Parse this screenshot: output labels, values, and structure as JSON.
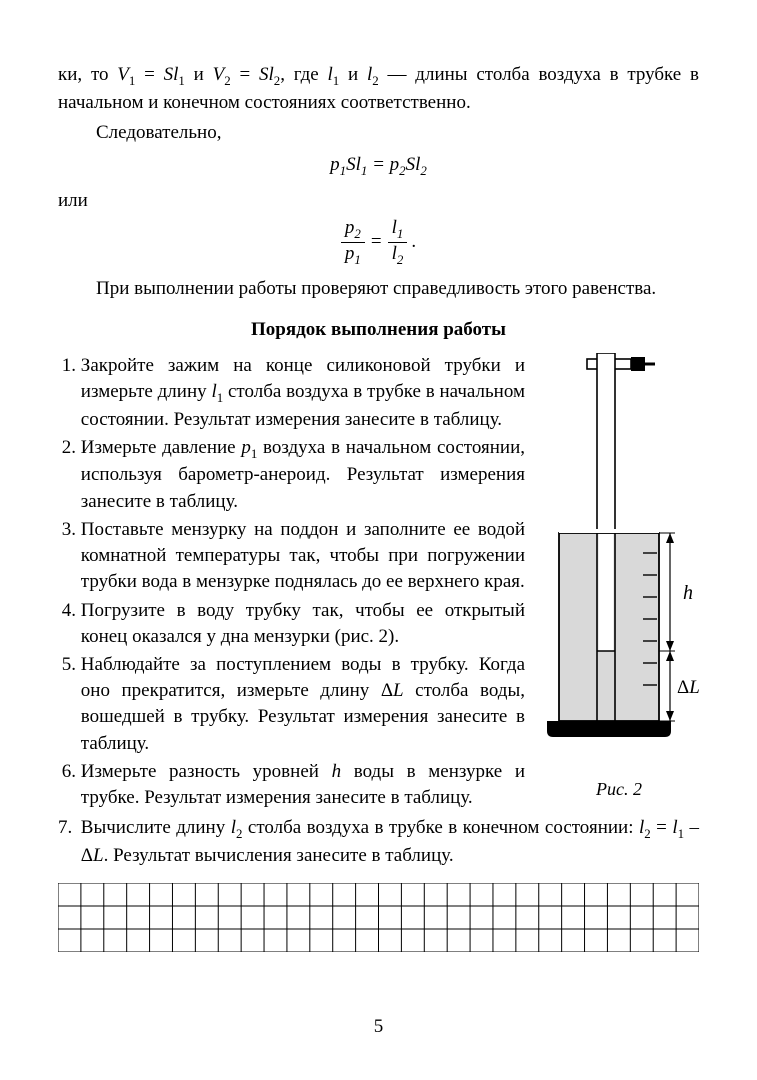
{
  "intro": {
    "line1_a": "ки, то ",
    "line1_b": " и ",
    "line1_c": ", где ",
    "line1_d": " и ",
    "line1_e": " — длины столба воздуха в трубке в начальном и конечном состояниях соответственно.",
    "v1": "V",
    "v1sub": "1",
    "eqs": " = ",
    "s": "S",
    "l": "l",
    "l1sub": "1",
    "v2": "V",
    "v2sub": "2",
    "l2sub": "2",
    "consequently": "Следовательно,",
    "or": "или",
    "eq1_p": "p",
    "eq1": "p₁Sl₁ = p₂Sl₂",
    "frac_p2": "p",
    "frac_p2s": "2",
    "frac_p1": "p",
    "frac_p1s": "1",
    "frac_l1": "l",
    "frac_l1s": "1",
    "frac_l2": "l",
    "frac_l2s": "2",
    "period": " .",
    "check": "При выполнении работы проверяют справедливость этого равенства."
  },
  "section_title": "Порядок выполнения работы",
  "steps": [
    "Закройте зажим на конце силиконовой трубки и измерьте длину l₁ столба воздуха в трубке в начальном состоянии. Результат измерения занесите в таблицу.",
    "Измерьте давление p₁ воздуха в начальном состоянии, используя барометр-анероид. Результат измерения занесите в таблицу.",
    "Поставьте мензурку на поддон и заполните ее водой комнатной температуры так, чтобы при погружении трубки вода в мензурке поднялась до ее верхнего края.",
    "Погрузите в воду трубку так, чтобы ее открытый конец оказался у дна мензурки (рис. 2).",
    "Наблюдайте за поступлением воды в трубку. Когда оно прекратится, измерьте длину ΔL столба воды, вошедшей в трубку. Результат измерения занесите в таблицу.",
    "Измерьте разность уровней h воды в мензурке и трубке. Результат измерения занесите в таблицу."
  ],
  "step7": {
    "marker": "7.",
    "text_a": "Вычислите длину ",
    "text_b": " столба воздуха в трубке в конечном состоянии: ",
    "text_c": ". Результат вычисления занесите в таблицу.",
    "l2": "l",
    "l2s": "2",
    "formula_a": "l",
    "formula_as": "2",
    "formula_eq": " = ",
    "formula_b": "l",
    "formula_bs": "1",
    "formula_minus": " – Δ",
    "formula_L": "L"
  },
  "figure": {
    "caption": "Рис. 2",
    "h_label": "h",
    "dl_label": "ΔL",
    "colors": {
      "outline": "#000000",
      "fill_water_outer": "#d9d9d9",
      "fill_water_inner": "#d9d9d9",
      "tube_fill": "#ffffff"
    }
  },
  "grid": {
    "rows": 3,
    "cols": 28,
    "stroke": "#000000"
  },
  "page_number": "5"
}
